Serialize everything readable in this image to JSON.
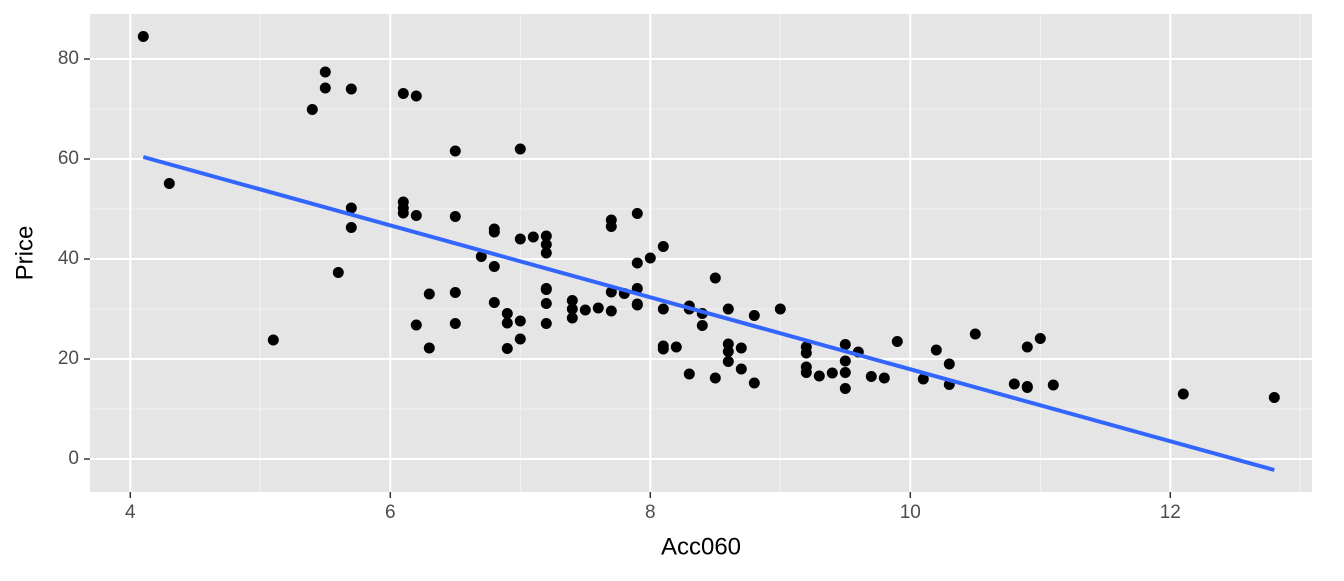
{
  "chart_data": {
    "type": "scatter",
    "x_label": "Acc060",
    "y_label": "Price",
    "xlim": [
      3.69,
      13.09
    ],
    "ylim": [
      -6.6,
      89
    ],
    "xticks": [
      4,
      6,
      8,
      10,
      12
    ],
    "yticks": [
      0,
      20,
      40,
      60,
      80
    ],
    "minor_xticks": [
      5,
      7,
      9,
      11,
      13
    ],
    "minor_yticks": [
      10,
      30,
      50,
      70
    ],
    "grid": true,
    "series": [
      {
        "color": "#000000",
        "x": [
          4.1,
          4.3,
          5.1,
          5.4,
          5.5,
          5.5,
          5.6,
          5.7,
          5.7,
          5.7,
          6.1,
          6.2,
          6.1,
          6.1,
          6.1,
          6.2,
          6.2,
          6.3,
          6.3,
          6.5,
          6.5,
          6.5,
          6.5,
          6.7,
          6.8,
          6.8,
          6.8,
          6.8,
          6.9,
          6.9,
          6.9,
          7.0,
          7.0,
          7.0,
          7.0,
          7.1,
          7.2,
          7.2,
          7.2,
          7.2,
          7.2,
          7.2,
          7.2,
          7.4,
          7.4,
          7.4,
          7.5,
          7.6,
          7.7,
          7.7,
          7.7,
          7.7,
          7.8,
          7.9,
          7.9,
          7.9,
          7.9,
          7.9,
          8.0,
          8.1,
          8.1,
          8.1,
          8.1,
          8.2,
          8.3,
          8.3,
          8.3,
          8.4,
          8.4,
          8.5,
          8.5,
          8.6,
          8.6,
          8.6,
          8.6,
          8.7,
          8.7,
          8.8,
          8.8,
          9.0,
          9.2,
          9.2,
          9.2,
          9.2,
          9.3,
          9.4,
          9.5,
          9.5,
          9.5,
          9.5,
          9.6,
          9.7,
          9.8,
          9.9,
          10.1,
          10.2,
          10.3,
          10.3,
          10.5,
          10.8,
          10.9,
          10.9,
          10.9,
          11.0,
          11.1,
          12.1,
          12.8
        ],
        "values": [
          84.5,
          55.1,
          23.8,
          69.9,
          77.4,
          74.2,
          37.3,
          74.0,
          50.2,
          46.3,
          73.1,
          72.6,
          51.4,
          50.2,
          49.2,
          48.7,
          26.8,
          33.0,
          22.2,
          61.6,
          48.5,
          33.3,
          27.1,
          40.5,
          46.0,
          45.4,
          38.5,
          31.3,
          29.1,
          27.2,
          22.1,
          62.0,
          44.0,
          27.6,
          24.0,
          44.4,
          44.6,
          42.9,
          41.2,
          34.1,
          33.9,
          31.1,
          27.1,
          31.7,
          30.0,
          28.2,
          29.8,
          30.2,
          47.8,
          46.5,
          33.4,
          29.6,
          33.1,
          49.1,
          39.2,
          34.1,
          31.0,
          30.8,
          40.2,
          42.5,
          30.0,
          22.6,
          22.0,
          22.4,
          30.6,
          30.0,
          17.0,
          29.1,
          26.7,
          36.2,
          16.2,
          30.0,
          23.0,
          21.5,
          19.5,
          22.2,
          18.0,
          28.7,
          15.2,
          30.0,
          22.4,
          21.2,
          18.4,
          17.3,
          16.6,
          17.2,
          22.9,
          19.6,
          17.3,
          14.1,
          21.4,
          16.5,
          16.2,
          23.5,
          16.0,
          21.8,
          19.0,
          14.9,
          25.0,
          15.0,
          22.4,
          14.5,
          14.3,
          24.1,
          14.8,
          13.0,
          12.3
        ]
      }
    ],
    "fit": {
      "color": "#3366ff",
      "x": [
        4.1,
        12.8
      ],
      "values": [
        60.4,
        -2.2
      ]
    }
  }
}
